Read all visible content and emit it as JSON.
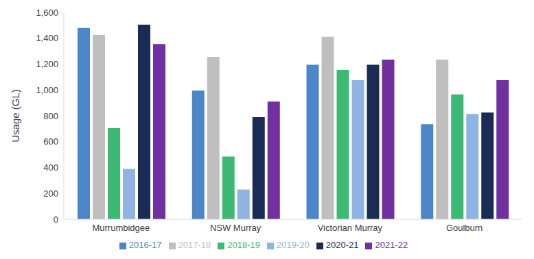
{
  "chart_data": {
    "type": "bar",
    "y_label": "Usage (GL)",
    "categories": [
      "Murrumbidgee",
      "NSW Murray",
      "Victorian Murray",
      "Goulburn"
    ],
    "series": [
      {
        "name": "2016-17",
        "color": "#4a86c8",
        "values": [
          1480,
          995,
          1195,
          735
        ]
      },
      {
        "name": "2017-18",
        "color": "#bfbfbf",
        "values": [
          1425,
          1255,
          1410,
          1235
        ]
      },
      {
        "name": "2018-19",
        "color": "#3cba74",
        "values": [
          705,
          485,
          1155,
          965
        ]
      },
      {
        "name": "2019-20",
        "color": "#8fb4e3",
        "values": [
          390,
          230,
          1075,
          815
        ]
      },
      {
        "name": "2020-21",
        "color": "#1a2b55",
        "values": [
          1505,
          790,
          1195,
          825
        ]
      },
      {
        "name": "2021-22",
        "color": "#7030a0",
        "values": [
          1355,
          910,
          1235,
          1075
        ]
      }
    ],
    "ylim": [
      0,
      1600
    ],
    "yticks": [
      0,
      200,
      400,
      600,
      800,
      {
        "value": 1000,
        "label": "1,000"
      },
      {
        "value": 1200,
        "label": "1,200"
      },
      {
        "value": 1400,
        "label": "1,400"
      },
      {
        "value": 1600,
        "label": "1,600"
      }
    ],
    "grid": false,
    "legend": "bottom"
  }
}
